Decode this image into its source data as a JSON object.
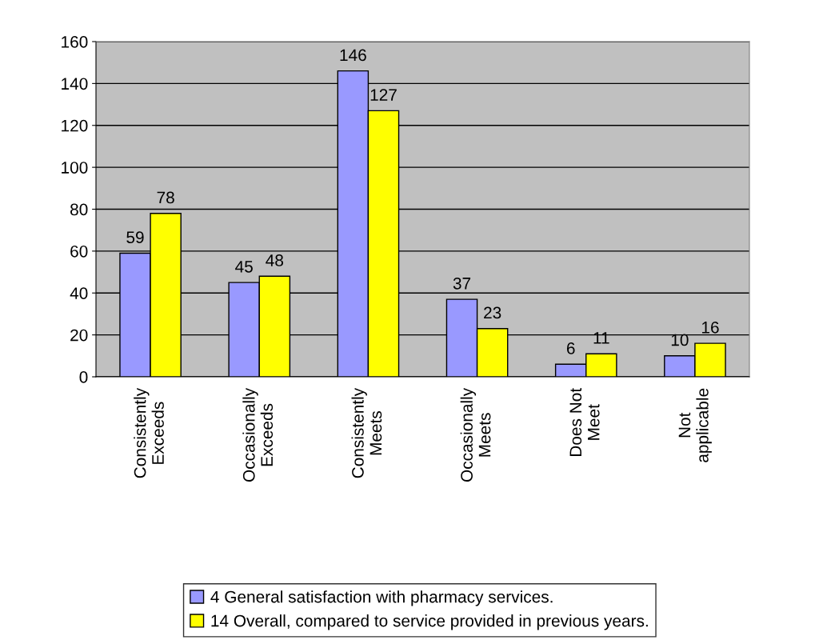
{
  "chart_data": {
    "type": "bar",
    "categories": [
      "Consistently\nExceeds",
      "Occasionally\nExceeds",
      "Consistently\nMeets",
      "Occasionally\nMeets",
      "Does Not\nMeet",
      "Not\napplicable"
    ],
    "series": [
      {
        "name": "4 General satisfaction with pharmacy services.",
        "color": "#9999ff",
        "values": [
          59,
          45,
          146,
          37,
          6,
          10
        ]
      },
      {
        "name": "14 Overall, compared to service provided in previous years.",
        "color": "#ffff00",
        "values": [
          78,
          48,
          127,
          23,
          11,
          16
        ]
      }
    ],
    "ylim": [
      0,
      160
    ],
    "yticks": [
      0,
      20,
      40,
      60,
      80,
      100,
      120,
      140,
      160
    ],
    "grid": "y",
    "legend": "bottom",
    "data_labels": true
  }
}
